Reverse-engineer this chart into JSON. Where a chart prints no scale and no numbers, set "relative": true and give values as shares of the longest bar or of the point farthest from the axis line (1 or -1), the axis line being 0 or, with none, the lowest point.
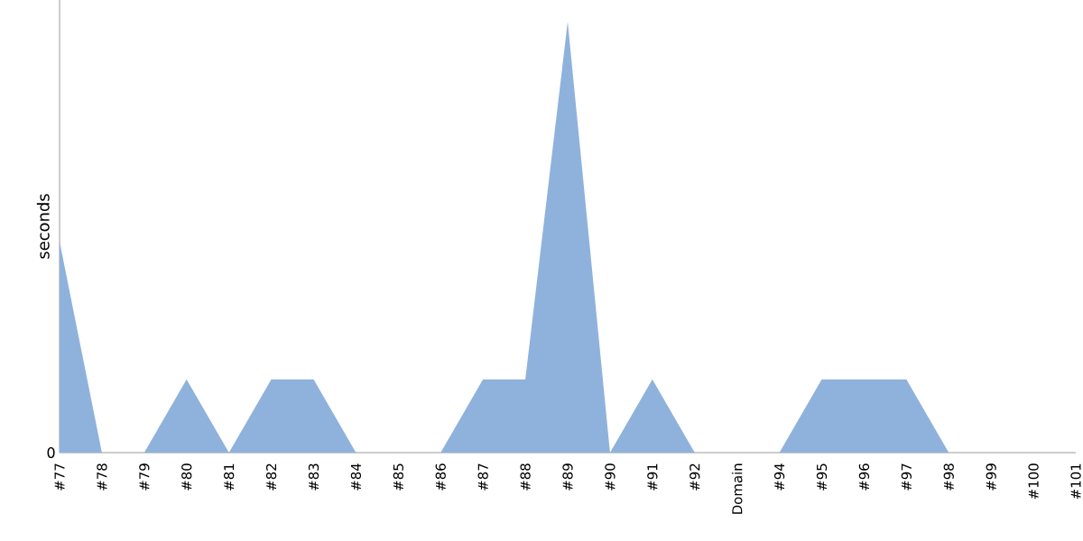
{
  "chart_data": {
    "type": "area",
    "ylabel": "seconds",
    "relative": true,
    "color": "#8fb2dc",
    "categories": [
      "#77",
      "#78",
      "#79",
      "#80",
      "#81",
      "#82",
      "#83",
      "#84",
      "#85",
      "#86",
      "#87",
      "#88",
      "#89",
      "#90",
      "#91",
      "#92",
      "Domain",
      "#94",
      "#95",
      "#96",
      "#97",
      "#98",
      "#99",
      "#100",
      "#101"
    ],
    "values": [
      0.49,
      0,
      0,
      0.17,
      0,
      0.17,
      0.17,
      0,
      0,
      0,
      0.17,
      0.17,
      1,
      0,
      0.17,
      0,
      0,
      0,
      0.17,
      0.17,
      0.17,
      0,
      0,
      0,
      0
    ],
    "annotations": [
      {
        "text": "0",
        "y": 0
      }
    ]
  }
}
